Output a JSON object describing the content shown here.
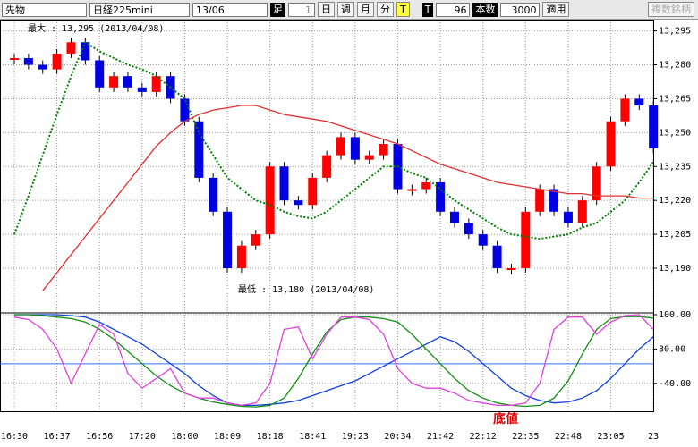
{
  "toolbar": {
    "market": "先物",
    "symbol": "日経225mini",
    "contract": "13/06",
    "bar_label": "足",
    "bar_count": "1",
    "day": "日",
    "week": "週",
    "month": "月",
    "minute": "分",
    "tick": "T",
    "t_label": "T",
    "t_value": "96",
    "count_label": "本数",
    "count_value": "3000",
    "apply": "適用",
    "multi": "複数銘柄"
  },
  "annotations": {
    "max": "最大 : 13,295 (2013/04/08)",
    "min": "最低 : 13,180 (2013/04/08)",
    "bottom": "底値"
  },
  "chart_data": [
    {
      "type": "candle-line",
      "categories": [
        "16:30",
        null,
        null,
        "16:37",
        null,
        null,
        "16:56",
        null,
        null,
        "17:20",
        null,
        null,
        "18:00",
        null,
        null,
        "18:09",
        null,
        null,
        "18:18",
        null,
        null,
        "18:41",
        null,
        null,
        "19:23",
        null,
        null,
        "20:34",
        null,
        null,
        "21:42",
        null,
        null,
        "22:12",
        null,
        null,
        "22:35",
        null,
        null,
        "22:48",
        null,
        null,
        "23:05",
        null,
        null,
        "23"
      ],
      "series": [
        {
          "name": "price",
          "color": "#e00000",
          "values": [
            13283,
            13280,
            13278,
            13285,
            13290,
            13282,
            13270,
            13275,
            13270,
            13268,
            13275,
            13265,
            13255,
            13230,
            13215,
            13190,
            13200,
            13205,
            13235,
            13220,
            13218,
            13230,
            13240,
            13248,
            13238,
            13240,
            13245,
            13225,
            13225,
            13228,
            13215,
            13210,
            13205,
            13200,
            13190,
            13190,
            13215,
            13225,
            13215,
            13210,
            13220,
            13235,
            13255,
            13265,
            13262,
            13243
          ]
        },
        {
          "name": "ma-short",
          "color": "#008000",
          "values": [
            13205,
            13222,
            13240,
            13258,
            13275,
            13290,
            13286,
            13283,
            13280,
            13278,
            13275,
            13270,
            13265,
            13250,
            13240,
            13230,
            13225,
            13220,
            13218,
            13215,
            13213,
            13212,
            13215,
            13220,
            13225,
            13230,
            13235,
            13235,
            13232,
            13230,
            13225,
            13220,
            13216,
            13212,
            13208,
            13205,
            13204,
            13203,
            13204,
            13205,
            13208,
            13210,
            13215,
            13220,
            13228,
            13237
          ]
        },
        {
          "name": "ma-long",
          "color": "#e03030",
          "values": [
            null,
            null,
            13180,
            13188,
            13196,
            13204,
            13212,
            13220,
            13228,
            13236,
            13244,
            13250,
            13255,
            13258,
            13260,
            13261,
            13262,
            13262,
            13260,
            13258,
            13257,
            13256,
            13255,
            13253,
            13251,
            13249,
            13247,
            13245,
            13242,
            13239,
            13236,
            13234,
            13232,
            13230,
            13228,
            13227,
            13226,
            13225,
            13224,
            13223,
            13223,
            13222,
            13222,
            13222,
            13221,
            13221
          ]
        }
      ],
      "ylim": [
        13171,
        13300
      ],
      "yticks": [
        {
          "value": 13190,
          "label": "13,190"
        },
        {
          "value": 13205,
          "label": "13,205"
        },
        {
          "value": 13220,
          "label": "13,220"
        },
        {
          "value": 13235,
          "label": "13,235"
        },
        {
          "value": 13250,
          "label": "13,250"
        },
        {
          "value": 13265,
          "label": "13,265"
        },
        {
          "value": 13280,
          "label": "13,280"
        },
        {
          "value": 13295,
          "label": "13,295"
        }
      ],
      "up_color": "#ff0000",
      "down_color": "#0000e0",
      "grid": true
    },
    {
      "type": "line",
      "series": [
        {
          "name": "blue",
          "color": "#1040e0",
          "values": [
            100,
            100,
            100,
            100,
            98,
            95,
            85,
            70,
            55,
            40,
            20,
            0,
            -20,
            -45,
            -65,
            -80,
            -85,
            -85,
            -83,
            -80,
            -75,
            -65,
            -55,
            -45,
            -35,
            -20,
            -5,
            10,
            25,
            40,
            55,
            45,
            25,
            0,
            -25,
            -50,
            -65,
            -75,
            -80,
            -78,
            -70,
            -55,
            -30,
            0,
            30,
            55
          ]
        },
        {
          "name": "green",
          "color": "#109010",
          "values": [
            100,
            100,
            98,
            95,
            92,
            85,
            70,
            50,
            25,
            0,
            -25,
            -45,
            -60,
            -70,
            -78,
            -83,
            -87,
            -88,
            -85,
            -70,
            -30,
            20,
            65,
            90,
            95,
            95,
            92,
            85,
            60,
            30,
            0,
            -30,
            -55,
            -70,
            -80,
            -85,
            -87,
            -85,
            -70,
            -35,
            20,
            70,
            92,
            96,
            96,
            93
          ]
        },
        {
          "name": "magenta",
          "color": "#e040e0",
          "values": [
            95,
            90,
            70,
            30,
            -40,
            20,
            80,
            60,
            -20,
            -50,
            -30,
            -10,
            -60,
            -70,
            -70,
            -80,
            -85,
            -80,
            -40,
            70,
            75,
            10,
            60,
            95,
            95,
            90,
            60,
            -10,
            -40,
            -50,
            -50,
            -60,
            -75,
            -80,
            -85,
            -85,
            -80,
            -40,
            70,
            95,
            95,
            60,
            85,
            98,
            100,
            70
          ]
        }
      ],
      "ylim": [
        -97,
        100
      ],
      "yticks": [
        {
          "value": -40,
          "label": "-40.00"
        },
        {
          "value": 30,
          "label": "30.00"
        },
        {
          "value": 100,
          "label": "100.00"
        }
      ],
      "reference_line": 0,
      "grid": true
    }
  ]
}
